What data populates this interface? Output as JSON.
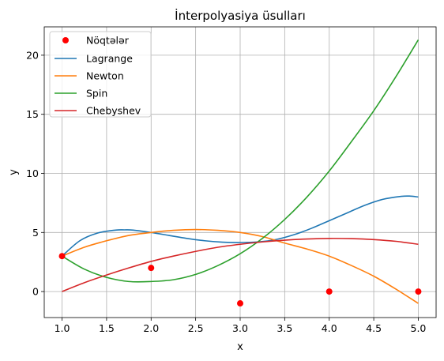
{
  "chart_data": {
    "type": "line",
    "title": "İnterpolyasiya üsulları",
    "xlabel": "x",
    "ylabel": "y",
    "xlim": [
      0.8,
      5.2
    ],
    "ylim": [
      -2.2,
      22.4
    ],
    "xticks": [
      1.0,
      1.5,
      2.0,
      2.5,
      3.0,
      3.5,
      4.0,
      4.5,
      5.0
    ],
    "xtick_labels": [
      "1.0",
      "1.5",
      "2.0",
      "2.5",
      "3.0",
      "3.5",
      "4.0",
      "4.5",
      "5.0"
    ],
    "yticks": [
      0,
      5,
      10,
      15,
      20
    ],
    "ytick_labels": [
      "0",
      "5",
      "10",
      "15",
      "20"
    ],
    "grid": true,
    "legend_position": "top-left",
    "points": {
      "name": "Nöqtələr",
      "color": "#ff0000",
      "x": [
        1,
        2,
        3,
        4,
        5
      ],
      "y": [
        3,
        2,
        -1,
        0,
        0
      ]
    },
    "series": [
      {
        "name": "Lagrange",
        "color": "#1f77b4",
        "x": [
          1.0,
          1.2,
          1.4,
          1.6,
          1.7,
          1.8,
          2.0,
          2.2,
          2.4,
          2.6,
          2.8,
          3.0,
          3.2,
          3.4,
          3.6,
          3.8,
          4.0,
          4.2,
          4.4,
          4.6,
          4.8,
          4.9,
          5.0
        ],
        "y": [
          3.0,
          4.3,
          4.95,
          5.2,
          5.22,
          5.2,
          5.0,
          4.75,
          4.5,
          4.3,
          4.18,
          4.15,
          4.2,
          4.4,
          4.8,
          5.35,
          6.0,
          6.65,
          7.3,
          7.8,
          8.05,
          8.08,
          8.0
        ]
      },
      {
        "name": "Newton",
        "color": "#ff7f0e",
        "x": [
          1.0,
          1.25,
          1.5,
          1.75,
          2.0,
          2.25,
          2.5,
          2.75,
          3.0,
          3.25,
          3.5,
          3.75,
          4.0,
          4.25,
          4.5,
          4.75,
          5.0
        ],
        "y": [
          3.0,
          3.75,
          4.3,
          4.75,
          5.0,
          5.18,
          5.25,
          5.18,
          5.0,
          4.65,
          4.1,
          3.6,
          3.0,
          2.2,
          1.3,
          0.2,
          -1.0
        ]
      },
      {
        "name": "Spin",
        "color": "#2ca02c",
        "x": [
          1.0,
          1.25,
          1.5,
          1.75,
          2.0,
          2.25,
          2.5,
          2.75,
          3.0,
          3.25,
          3.5,
          3.75,
          4.0,
          4.25,
          4.5,
          4.75,
          5.0
        ],
        "y": [
          3.0,
          1.9,
          1.2,
          0.85,
          0.85,
          1.0,
          1.45,
          2.2,
          3.2,
          4.5,
          6.1,
          8.0,
          10.2,
          12.7,
          15.3,
          18.2,
          21.3
        ]
      },
      {
        "name": "Chebyshev",
        "color": "#d62728",
        "x": [
          1.0,
          1.25,
          1.5,
          1.75,
          2.0,
          2.25,
          2.5,
          2.75,
          3.0,
          3.25,
          3.5,
          3.75,
          4.0,
          4.25,
          4.5,
          4.75,
          5.0
        ],
        "y": [
          0.0,
          0.75,
          1.4,
          2.0,
          2.55,
          3.0,
          3.4,
          3.75,
          4.0,
          4.2,
          4.35,
          4.45,
          4.5,
          4.48,
          4.4,
          4.25,
          4.0
        ]
      }
    ]
  }
}
